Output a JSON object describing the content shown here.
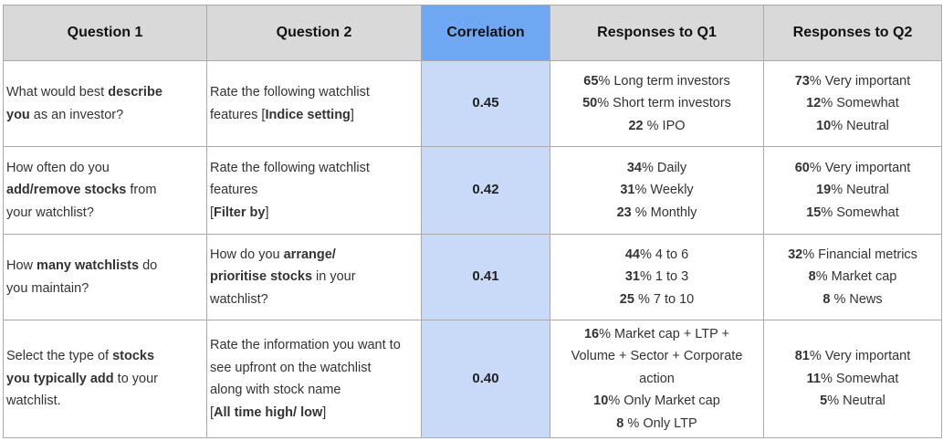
{
  "headers": {
    "q1": "Question 1",
    "q2": "Question 2",
    "correlation": "Correlation",
    "r1": "Responses to Q1",
    "r2": "Responses to Q2"
  },
  "colors": {
    "header_bg": "#d9d9d9",
    "correlation_header_bg": "#6fa8f2",
    "correlation_cell_bg": "#c9daf8",
    "border": "#a9a9a9"
  },
  "rows": [
    {
      "q1": [
        {
          "t": "What would best "
        },
        {
          "t": "describe",
          "b": true
        },
        {
          "t": " "
        },
        {
          "br": true
        },
        {
          "t": "you",
          "b": true
        },
        {
          "t": " as an investor?"
        }
      ],
      "q2": [
        {
          "t": "Rate the following watchlist"
        },
        {
          "br": true
        },
        {
          "t": "features ["
        },
        {
          "t": "Indice setting",
          "b": true
        },
        {
          "t": "]"
        }
      ],
      "correlation": "0.45",
      "r1": [
        [
          {
            "t": "65",
            "b": true
          },
          {
            "t": "% Long term investors"
          }
        ],
        [
          {
            "t": "50",
            "b": true
          },
          {
            "t": "% Short term investors"
          }
        ],
        [
          {
            "t": "22",
            "b": true
          },
          {
            "t": " % IPO"
          }
        ]
      ],
      "r2": [
        [
          {
            "t": "73",
            "b": true
          },
          {
            "t": "% Very important"
          }
        ],
        [
          {
            "t": "12",
            "b": true
          },
          {
            "t": "% Somewhat"
          }
        ],
        [
          {
            "t": "10",
            "b": true
          },
          {
            "t": "% Neutral"
          }
        ]
      ]
    },
    {
      "q1": [
        {
          "t": "How often do you"
        },
        {
          "br": true
        },
        {
          "t": "add/remove stocks",
          "b": true
        },
        {
          "t": " from"
        },
        {
          "br": true
        },
        {
          "t": "your watchlist?"
        }
      ],
      "q2": [
        {
          "t": "Rate the following watchlist"
        },
        {
          "br": true
        },
        {
          "t": "features"
        },
        {
          "br": true
        },
        {
          "t": "["
        },
        {
          "t": "Filter by",
          "b": true
        },
        {
          "t": "]"
        }
      ],
      "correlation": "0.42",
      "r1": [
        [
          {
            "t": "34",
            "b": true
          },
          {
            "t": "% Daily"
          }
        ],
        [
          {
            "t": "31",
            "b": true
          },
          {
            "t": "% Weekly"
          }
        ],
        [
          {
            "t": "23",
            "b": true
          },
          {
            "t": " % Monthly"
          }
        ]
      ],
      "r2": [
        [
          {
            "t": "60",
            "b": true
          },
          {
            "t": "% Very important"
          }
        ],
        [
          {
            "t": "19",
            "b": true
          },
          {
            "t": "% Neutral"
          }
        ],
        [
          {
            "t": "15",
            "b": true
          },
          {
            "t": "% Somewhat"
          }
        ]
      ]
    },
    {
      "q1": [
        {
          "t": "How "
        },
        {
          "t": "many watchlists",
          "b": true
        },
        {
          "t": " do"
        },
        {
          "br": true
        },
        {
          "t": "you maintain?"
        }
      ],
      "q2": [
        {
          "t": "How do you "
        },
        {
          "t": "arrange/",
          "b": true
        },
        {
          "br": true
        },
        {
          "t": "prioritise stocks",
          "b": true
        },
        {
          "t": " in your"
        },
        {
          "br": true
        },
        {
          "t": "watchlist?"
        }
      ],
      "correlation": "0.41",
      "r1": [
        [
          {
            "t": "44",
            "b": true
          },
          {
            "t": "%  4 to 6"
          }
        ],
        [
          {
            "t": "31",
            "b": true
          },
          {
            "t": "%  1 to 3"
          }
        ],
        [
          {
            "t": "25",
            "b": true
          },
          {
            "t": " %  7 to 10"
          }
        ]
      ],
      "r2": [
        [
          {
            "t": "32",
            "b": true
          },
          {
            "t": "%  Financial metrics"
          }
        ],
        [
          {
            "t": "8",
            "b": true
          },
          {
            "t": "%  Market cap"
          }
        ],
        [
          {
            "t": "8",
            "b": true
          },
          {
            "t": " %  News"
          }
        ]
      ]
    },
    {
      "q1": [
        {
          "t": "Select the type of "
        },
        {
          "t": "stocks",
          "b": true
        },
        {
          "br": true
        },
        {
          "t": "you typically add",
          "b": true
        },
        {
          "t": " to your"
        },
        {
          "br": true
        },
        {
          "t": "watchlist."
        }
      ],
      "q2": [
        {
          "t": "Rate the information you want to"
        },
        {
          "br": true
        },
        {
          "t": "see upfront on the watchlist"
        },
        {
          "br": true
        },
        {
          "t": "along with stock name"
        },
        {
          "br": true
        },
        {
          "t": "["
        },
        {
          "t": "All time high/ low",
          "b": true
        },
        {
          "t": "]"
        }
      ],
      "correlation": "0.40",
      "r1": [
        [
          {
            "t": "16",
            "b": true
          },
          {
            "t": "%  Market cap + LTP +"
          }
        ],
        [
          {
            "t": "Volume + Sector + Corporate"
          }
        ],
        [
          {
            "t": "action"
          }
        ],
        [
          {
            "t": "10",
            "b": true
          },
          {
            "t": "%  Only Market cap"
          }
        ],
        [
          {
            "t": "8",
            "b": true
          },
          {
            "t": " %  Only LTP"
          }
        ]
      ],
      "r2": [
        [
          {
            "t": "81",
            "b": true
          },
          {
            "t": "% Very important"
          }
        ],
        [
          {
            "t": "11",
            "b": true
          },
          {
            "t": "% Somewhat"
          }
        ],
        [
          {
            "t": "5",
            "b": true
          },
          {
            "t": "% Neutral"
          }
        ]
      ]
    }
  ]
}
